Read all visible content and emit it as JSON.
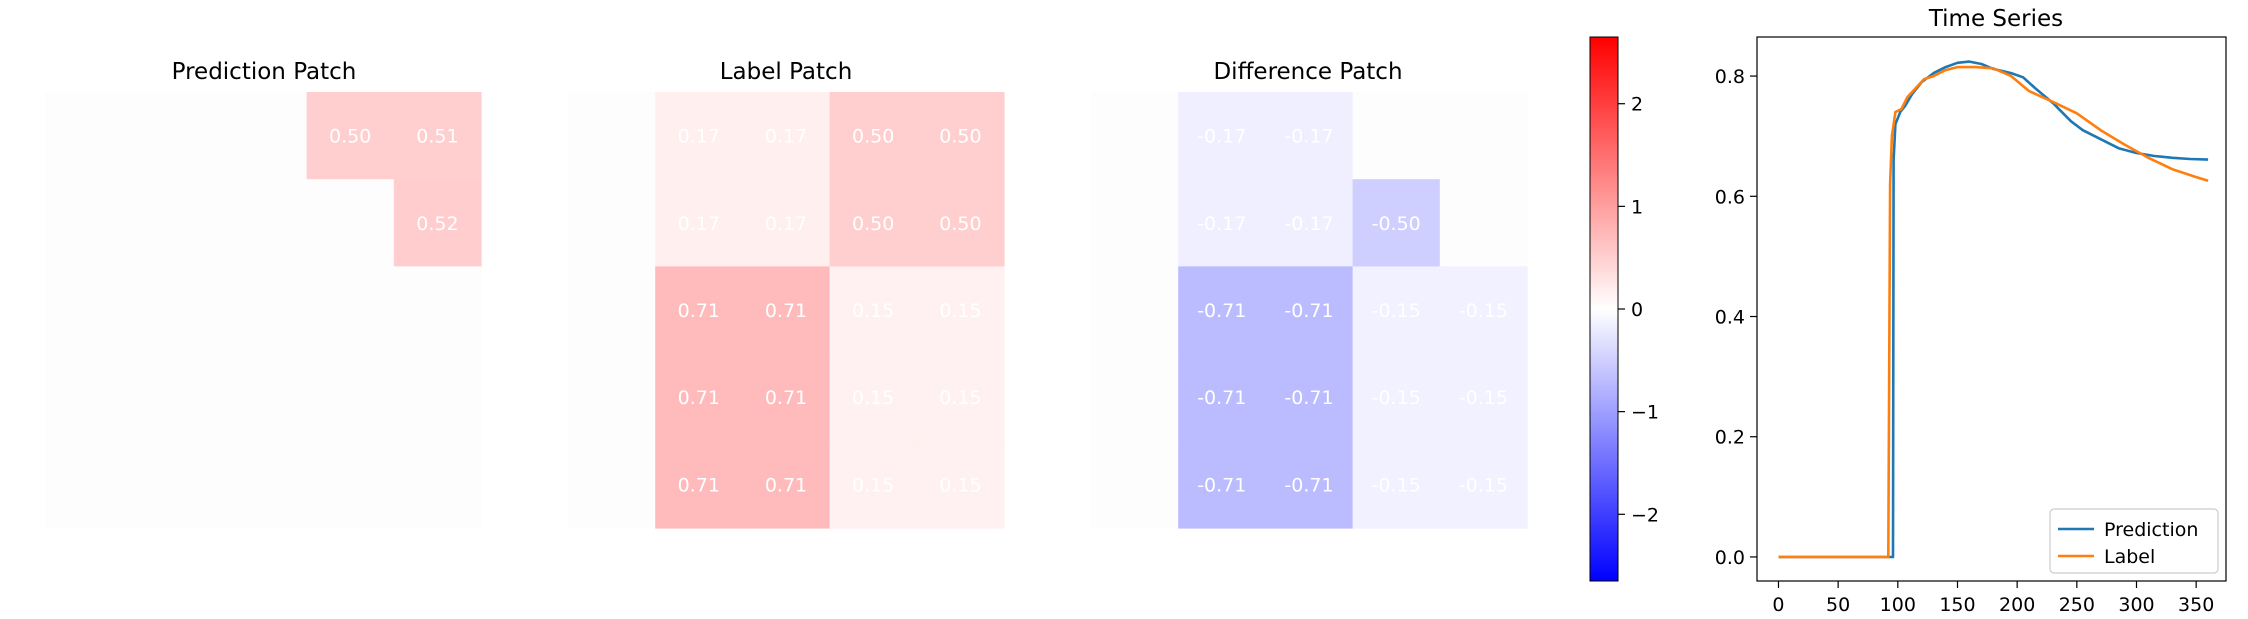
{
  "figure": {
    "panel_titles": [
      "Prediction Patch",
      "Label Patch",
      "Difference Patch",
      "Time Series"
    ]
  },
  "chart_data": [
    {
      "type": "heatmap",
      "title": "Prediction Patch",
      "rows": 5,
      "cols": 5,
      "values": [
        [
          0,
          0,
          0,
          0.5,
          0.51
        ],
        [
          0,
          0,
          0,
          0,
          0.52
        ],
        [
          0,
          0,
          0,
          0,
          0
        ],
        [
          0,
          0,
          0,
          0,
          0
        ],
        [
          0,
          0,
          0,
          0,
          0
        ]
      ],
      "labels": [
        [
          "",
          "",
          "",
          "0.50",
          "0.51"
        ],
        [
          "",
          "",
          "",
          "",
          "0.52"
        ],
        [
          "",
          "",
          "",
          "",
          ""
        ],
        [
          "",
          "",
          "",
          "",
          ""
        ],
        [
          "",
          "",
          "",
          "",
          ""
        ]
      ]
    },
    {
      "type": "heatmap",
      "title": "Label Patch",
      "rows": 5,
      "cols": 5,
      "values": [
        [
          0,
          0.17,
          0.17,
          0.5,
          0.5
        ],
        [
          0,
          0.17,
          0.17,
          0.5,
          0.5
        ],
        [
          0,
          0.71,
          0.71,
          0.15,
          0.15
        ],
        [
          0,
          0.71,
          0.71,
          0.15,
          0.15
        ],
        [
          0,
          0.71,
          0.71,
          0.15,
          0.15
        ]
      ],
      "labels": [
        [
          "",
          "0.17",
          "0.17",
          "0.50",
          "0.50"
        ],
        [
          "",
          "0.17",
          "0.17",
          "0.50",
          "0.50"
        ],
        [
          "",
          "0.71",
          "0.71",
          "0.15",
          "0.15"
        ],
        [
          "",
          "0.71",
          "0.71",
          "0.15",
          "0.15"
        ],
        [
          "",
          "0.71",
          "0.71",
          "0.15",
          "0.15"
        ]
      ]
    },
    {
      "type": "heatmap",
      "title": "Difference Patch",
      "rows": 5,
      "cols": 5,
      "values": [
        [
          0,
          -0.17,
          -0.17,
          0,
          0
        ],
        [
          0,
          -0.17,
          -0.17,
          -0.5,
          0
        ],
        [
          0,
          -0.71,
          -0.71,
          -0.15,
          -0.15
        ],
        [
          0,
          -0.71,
          -0.71,
          -0.15,
          -0.15
        ],
        [
          0,
          -0.71,
          -0.71,
          -0.15,
          -0.15
        ]
      ],
      "labels": [
        [
          "",
          "-0.17",
          "-0.17",
          "",
          ""
        ],
        [
          "",
          "-0.17",
          "-0.17",
          "-0.50",
          ""
        ],
        [
          "",
          "-0.71",
          "-0.71",
          "-0.15",
          "-0.15"
        ],
        [
          "",
          "-0.71",
          "-0.71",
          "-0.15",
          "-0.15"
        ],
        [
          "",
          "-0.71",
          "-0.71",
          "-0.15",
          "-0.15"
        ]
      ]
    },
    {
      "type": "colorbar",
      "colormap": "bwr",
      "range": [
        -2.65,
        2.65
      ],
      "ticks": [
        -2,
        -1,
        0,
        1,
        2
      ],
      "tick_labels": [
        "−2",
        "−1",
        "0",
        "1",
        "2"
      ]
    },
    {
      "type": "line",
      "title": "Time Series",
      "xlim": [
        -18,
        375
      ],
      "ylim": [
        -0.04,
        0.865
      ],
      "xticks": [
        0,
        50,
        100,
        150,
        200,
        250,
        300,
        350
      ],
      "xtick_labels": [
        "0",
        "50",
        "100",
        "150",
        "200",
        "250",
        "300",
        "350"
      ],
      "yticks": [
        0.0,
        0.2,
        0.4,
        0.6,
        0.8
      ],
      "ytick_labels": [
        "0.0",
        "0.2",
        "0.4",
        "0.6",
        "0.8"
      ],
      "legend_position": "lower-right",
      "series": [
        {
          "name": "Prediction",
          "color": "#1f77b4",
          "points": [
            [
              0,
              0
            ],
            [
              96,
              0
            ],
            [
              96.5,
              0.66
            ],
            [
              98,
              0.72
            ],
            [
              102,
              0.74
            ],
            [
              106,
              0.75
            ],
            [
              112,
              0.77
            ],
            [
              120,
              0.79
            ],
            [
              130,
              0.805
            ],
            [
              140,
              0.815
            ],
            [
              150,
              0.822
            ],
            [
              160,
              0.824
            ],
            [
              170,
              0.82
            ],
            [
              180,
              0.812
            ],
            [
              195,
              0.805
            ],
            [
              205,
              0.798
            ],
            [
              215,
              0.78
            ],
            [
              230,
              0.755
            ],
            [
              245,
              0.725
            ],
            [
              255,
              0.71
            ],
            [
              270,
              0.695
            ],
            [
              285,
              0.68
            ],
            [
              300,
              0.672
            ],
            [
              315,
              0.667
            ],
            [
              330,
              0.664
            ],
            [
              345,
              0.662
            ],
            [
              360,
              0.661
            ]
          ]
        },
        {
          "name": "Label",
          "color": "#ff7f0e",
          "points": [
            [
              0,
              0
            ],
            [
              92,
              0
            ],
            [
              93.5,
              0.62
            ],
            [
              95,
              0.7
            ],
            [
              98,
              0.74
            ],
            [
              103,
              0.745
            ],
            [
              108,
              0.765
            ],
            [
              115,
              0.78
            ],
            [
              122,
              0.795
            ],
            [
              130,
              0.8
            ],
            [
              140,
              0.81
            ],
            [
              150,
              0.815
            ],
            [
              165,
              0.815
            ],
            [
              180,
              0.813
            ],
            [
              195,
              0.8
            ],
            [
              210,
              0.775
            ],
            [
              230,
              0.757
            ],
            [
              250,
              0.738
            ],
            [
              270,
              0.71
            ],
            [
              290,
              0.686
            ],
            [
              310,
              0.664
            ],
            [
              330,
              0.645
            ],
            [
              350,
              0.632
            ],
            [
              360,
              0.626
            ]
          ]
        }
      ]
    }
  ]
}
